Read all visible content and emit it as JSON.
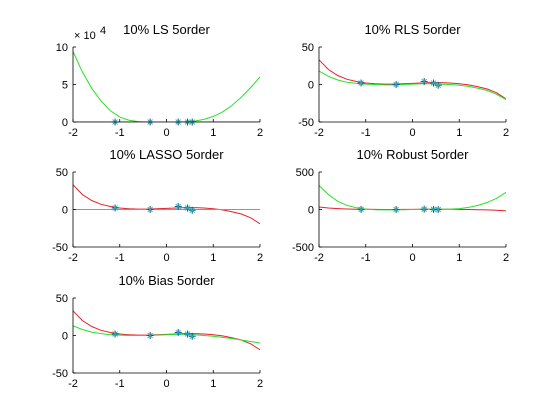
{
  "colors": {
    "fit_a": "#e8202a",
    "fit_b": "#28e028",
    "data_marker": "#1b4f8f",
    "data_marker_alt": "#27b3b3",
    "axis": "#000000"
  },
  "chart_data": [
    {
      "type": "line",
      "title": "10% LS 5order",
      "xlim": [
        -2,
        2
      ],
      "ylim": [
        0,
        100000
      ],
      "xticks": [
        "-2",
        "-1",
        "0",
        "1",
        "2"
      ],
      "yticks": [
        "0",
        "5",
        "10"
      ],
      "y_multiplier_label": "× 10",
      "y_multiplier_exp": "4",
      "series": [
        {
          "color_key": "fit_a",
          "x": [
            -2,
            -1,
            0,
            1,
            2
          ],
          "y": [
            0,
            0,
            0,
            0,
            0
          ]
        },
        {
          "color_key": "fit_b",
          "x": [
            -2,
            -1.8,
            -1.6,
            -1.4,
            -1.2,
            -1,
            -0.8,
            -0.6,
            -0.4,
            -0.2,
            0,
            0.2,
            0.4,
            0.6,
            0.8,
            1,
            1.2,
            1.4,
            1.6,
            1.8,
            2
          ],
          "y": [
            94000,
            67000,
            45000,
            28000,
            15000,
            6500,
            2200,
            500,
            50,
            0,
            0,
            0,
            300,
            1200,
            3500,
            7500,
            13500,
            22000,
            33000,
            46000,
            60000
          ]
        }
      ],
      "points": {
        "x": [
          -1.1,
          -0.35,
          0.25,
          0.45,
          0.55
        ],
        "y": [
          0,
          0,
          0,
          0,
          0
        ]
      }
    },
    {
      "type": "line",
      "title": "10% RLS 5order",
      "xlim": [
        -2,
        2
      ],
      "ylim": [
        -50,
        50
      ],
      "xticks": [
        "-2",
        "-1",
        "0",
        "1",
        "2"
      ],
      "yticks": [
        "-50",
        "0",
        "50"
      ],
      "series": [
        {
          "color_key": "fit_a",
          "x": [
            -2,
            -1.8,
            -1.6,
            -1.4,
            -1.2,
            -1,
            -0.8,
            -0.6,
            -0.4,
            -0.2,
            0,
            0.2,
            0.4,
            0.6,
            0.8,
            1,
            1.2,
            1.4,
            1.6,
            1.8,
            2
          ],
          "y": [
            33,
            20,
            12,
            7,
            4,
            2,
            1,
            0.5,
            0.5,
            1,
            1.5,
            2,
            2.5,
            2.5,
            2,
            1,
            -0.5,
            -3,
            -6,
            -11,
            -19
          ]
        },
        {
          "color_key": "fit_b",
          "x": [
            -2,
            -1.8,
            -1.6,
            -1.4,
            -1.2,
            -1,
            -0.8,
            -0.6,
            -0.4,
            -0.2,
            0,
            0.2,
            0.4,
            0.6,
            0.8,
            1,
            1.2,
            1.4,
            1.6,
            1.8,
            2
          ],
          "y": [
            18,
            11,
            6,
            3,
            1.5,
            0.5,
            0,
            -0.5,
            -0.5,
            0,
            0.5,
            1,
            1,
            0.5,
            0,
            -1,
            -2.5,
            -5,
            -8,
            -13,
            -20
          ]
        }
      ],
      "points": {
        "x": [
          -1.1,
          -0.35,
          0.25,
          0.45,
          0.55
        ],
        "y": [
          2,
          0,
          4,
          2,
          -1
        ]
      }
    },
    {
      "type": "line",
      "title": "10% LASSO 5order",
      "xlim": [
        -2,
        2
      ],
      "ylim": [
        -50,
        50
      ],
      "xticks": [
        "-2",
        "-1",
        "0",
        "1",
        "2"
      ],
      "yticks": [
        "-50",
        "0",
        "50"
      ],
      "series": [
        {
          "color_key": "fit_a",
          "x": [
            -2,
            -1.8,
            -1.6,
            -1.4,
            -1.2,
            -1,
            -0.8,
            -0.6,
            -0.4,
            -0.2,
            0,
            0.2,
            0.4,
            0.6,
            0.8,
            1,
            1.2,
            1.4,
            1.6,
            1.8,
            2
          ],
          "y": [
            33,
            20,
            12,
            7,
            4,
            2,
            1,
            0.5,
            0.5,
            1,
            1.5,
            2,
            2.5,
            2.5,
            2,
            1,
            -0.5,
            -3,
            -6,
            -11,
            -19
          ]
        },
        {
          "color_key": "fit_b",
          "x": [
            -2,
            2
          ],
          "y": [
            0,
            0
          ]
        }
      ],
      "points": {
        "x": [
          -1.1,
          -0.35,
          0.25,
          0.45,
          0.55
        ],
        "y": [
          2,
          0,
          4,
          2,
          -1
        ]
      }
    },
    {
      "type": "line",
      "title": "10% Robust 5order",
      "xlim": [
        -2,
        2
      ],
      "ylim": [
        -500,
        500
      ],
      "xticks": [
        "-2",
        "-1",
        "0",
        "1",
        "2"
      ],
      "yticks": [
        "-500",
        "0",
        "500"
      ],
      "series": [
        {
          "color_key": "fit_a",
          "x": [
            -2,
            -1.8,
            -1.6,
            -1.4,
            -1.2,
            -1,
            -0.8,
            -0.6,
            -0.4,
            -0.2,
            0,
            0.2,
            0.4,
            0.6,
            0.8,
            1,
            1.2,
            1.4,
            1.6,
            1.8,
            2
          ],
          "y": [
            33,
            20,
            12,
            7,
            4,
            2,
            1,
            0.5,
            0.5,
            1,
            1.5,
            2,
            2.5,
            2.5,
            2,
            1,
            -0.5,
            -3,
            -6,
            -11,
            -19
          ]
        },
        {
          "color_key": "fit_b",
          "x": [
            -2,
            -1.8,
            -1.6,
            -1.4,
            -1.2,
            -1,
            -0.8,
            -0.6,
            -0.4,
            -0.2,
            0,
            0.2,
            0.4,
            0.6,
            0.8,
            1,
            1.2,
            1.4,
            1.6,
            1.8,
            2
          ],
          "y": [
            320,
            200,
            110,
            55,
            22,
            5,
            -2,
            -5,
            -5,
            -3,
            0,
            2,
            3,
            3,
            5,
            12,
            28,
            55,
            95,
            150,
            230
          ]
        }
      ],
      "points": {
        "x": [
          -1.1,
          -0.35,
          0.25,
          0.45,
          0.55
        ],
        "y": [
          2,
          0,
          4,
          2,
          -1
        ]
      }
    },
    {
      "type": "line",
      "title": "10% Bias 5order",
      "xlim": [
        -2,
        2
      ],
      "ylim": [
        -50,
        50
      ],
      "xticks": [
        "-2",
        "-1",
        "0",
        "1",
        "2"
      ],
      "yticks": [
        "-50",
        "0",
        "50"
      ],
      "series": [
        {
          "color_key": "fit_a",
          "x": [
            -2,
            -1.8,
            -1.6,
            -1.4,
            -1.2,
            -1,
            -0.8,
            -0.6,
            -0.4,
            -0.2,
            0,
            0.2,
            0.4,
            0.6,
            0.8,
            1,
            1.2,
            1.4,
            1.6,
            1.8,
            2
          ],
          "y": [
            33,
            20,
            12,
            7,
            4,
            2,
            1,
            0.5,
            0.5,
            1,
            1.5,
            2,
            2.5,
            2.5,
            2,
            1,
            -0.5,
            -3,
            -6,
            -11,
            -19
          ]
        },
        {
          "color_key": "fit_b",
          "x": [
            -2,
            -1.8,
            -1.6,
            -1.4,
            -1.2,
            -1,
            -0.8,
            -0.6,
            -0.4,
            -0.2,
            0,
            0.2,
            0.4,
            0.6,
            0.8,
            1,
            1.2,
            1.4,
            1.6,
            1.8,
            2
          ],
          "y": [
            13,
            8,
            4.5,
            2.5,
            1,
            0.5,
            0,
            0,
            0,
            0.5,
            1,
            1.5,
            1.5,
            1,
            0,
            -1,
            -2.5,
            -4,
            -6,
            -8,
            -10
          ]
        }
      ],
      "points": {
        "x": [
          -1.1,
          -0.35,
          0.25,
          0.45,
          0.55
        ],
        "y": [
          2,
          0,
          4,
          2,
          -1
        ]
      }
    }
  ]
}
